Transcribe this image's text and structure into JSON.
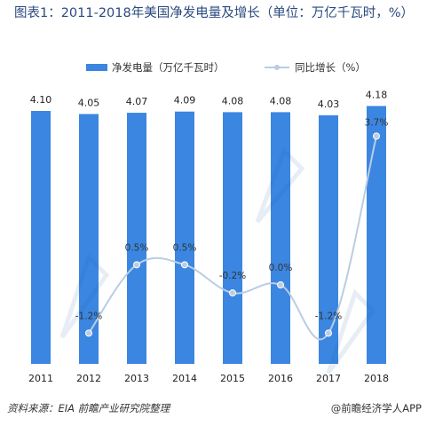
{
  "title": "图表1：2011-2018年美国净发电量及增长（单位：万亿千瓦时，%）",
  "source": "资料来源：EIA 前瞻产业研究院整理",
  "credit": "@前瞻经济学人APP",
  "colors": {
    "bar": "#3b86e0",
    "line": "#b9cde4",
    "marker": "#b9cde4",
    "title": "#2b4a7f"
  },
  "chart_data": {
    "type": "bar",
    "title": "图表1：2011-2018年美国净发电量及增长（单位：万亿千瓦时，%）",
    "categories": [
      "2011",
      "2012",
      "2013",
      "2014",
      "2015",
      "2016",
      "2017",
      "2018"
    ],
    "legend_position": "top",
    "grid": false,
    "series": [
      {
        "name": "净发电量（万亿千瓦时）",
        "type": "bar",
        "axis": "left",
        "values": [
          4.1,
          4.05,
          4.07,
          4.09,
          4.08,
          4.08,
          4.03,
          4.18
        ],
        "labels": [
          "4.10",
          "4.05",
          "4.07",
          "4.09",
          "4.08",
          "4.08",
          "4.03",
          "4.18"
        ]
      },
      {
        "name": "同比增长（%）",
        "type": "line",
        "axis": "right",
        "smooth": true,
        "values": [
          null,
          -1.2,
          0.5,
          0.5,
          -0.2,
          0.0,
          -1.2,
          3.7
        ],
        "labels": [
          "",
          "-1.2%",
          "0.5%",
          "0.5%",
          "-0.2%",
          "0.0%",
          "-1.2%",
          "3.7%"
        ]
      }
    ]
  }
}
